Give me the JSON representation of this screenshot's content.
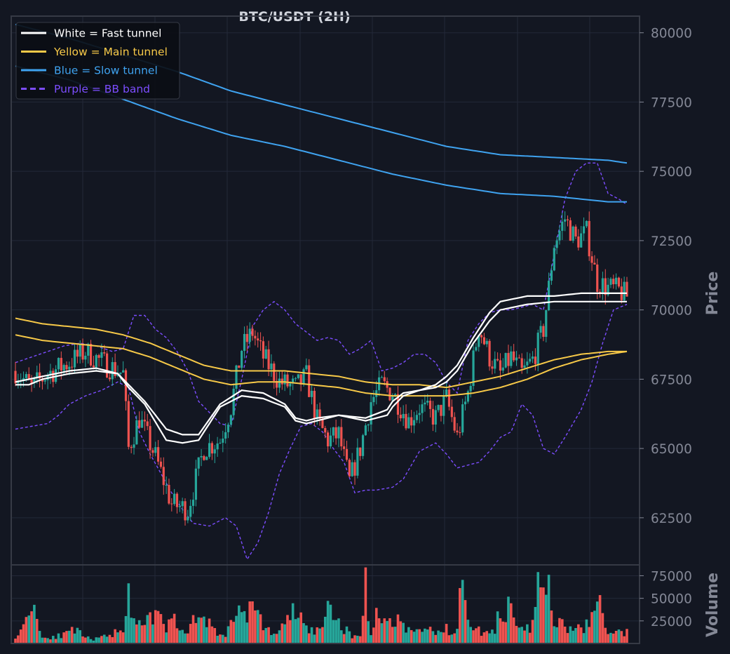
{
  "chart_data": {
    "type": "candlestick",
    "title": "BTC/USDT (2H)",
    "price_axis": {
      "label": "Price",
      "ylim": [
        60800,
        80600
      ],
      "ticks": [
        62500,
        65000,
        67500,
        70000,
        72500,
        75000,
        77500,
        80000
      ]
    },
    "volume_axis": {
      "label": "Volume",
      "ylim": [
        0,
        87000
      ],
      "ticks": [
        25000,
        50000,
        75000
      ]
    },
    "grid": true,
    "legend": {
      "placement": "top-left",
      "entries": [
        {
          "label": "White = Fast tunnel",
          "color": "#ffffff",
          "style": "solid"
        },
        {
          "label": "Yellow = Main tunnel",
          "color": "#f7c948",
          "style": "solid"
        },
        {
          "label": "Blue = Slow tunnel",
          "color": "#3fa3f0",
          "style": "solid"
        },
        {
          "label": "Purple = BB band",
          "color": "#7c4dff",
          "style": "dashed"
        }
      ]
    },
    "colors": {
      "background": "#131722",
      "up": "#26a69a",
      "down": "#ef5350",
      "grid": "#232838",
      "frame": "#363a45"
    },
    "candles_anchor_close": [
      [
        0,
        67800
      ],
      [
        6,
        67200
      ],
      [
        12,
        67700
      ],
      [
        20,
        68100
      ],
      [
        26,
        68500
      ],
      [
        34,
        68000
      ],
      [
        40,
        67700
      ],
      [
        42,
        65000
      ],
      [
        46,
        66100
      ],
      [
        52,
        64700
      ],
      [
        58,
        63000
      ],
      [
        64,
        62800
      ],
      [
        70,
        65000
      ],
      [
        76,
        65300
      ],
      [
        80,
        66500
      ],
      [
        84,
        68600
      ],
      [
        88,
        69200
      ],
      [
        92,
        68300
      ],
      [
        98,
        67400
      ],
      [
        104,
        67200
      ],
      [
        108,
        67600
      ],
      [
        112,
        66000
      ],
      [
        116,
        65300
      ],
      [
        120,
        65500
      ],
      [
        124,
        63800
      ],
      [
        128,
        65000
      ],
      [
        132,
        66700
      ],
      [
        136,
        67300
      ],
      [
        140,
        67000
      ],
      [
        146,
        66000
      ],
      [
        150,
        66500
      ],
      [
        156,
        66100
      ],
      [
        160,
        66800
      ],
      [
        164,
        65400
      ],
      [
        168,
        67000
      ],
      [
        172,
        69400
      ],
      [
        176,
        68300
      ],
      [
        180,
        67700
      ],
      [
        184,
        68300
      ],
      [
        188,
        67700
      ],
      [
        192,
        68200
      ],
      [
        196,
        69300
      ],
      [
        198,
        70800
      ],
      [
        200,
        72400
      ],
      [
        204,
        73300
      ],
      [
        208,
        72500
      ],
      [
        212,
        72800
      ],
      [
        216,
        71000
      ],
      [
        220,
        70800
      ],
      [
        224,
        70700
      ],
      [
        227,
        70500
      ]
    ],
    "fast_tunnel_upper": [
      [
        0,
        67400
      ],
      [
        5,
        67500
      ],
      [
        10,
        67600
      ],
      [
        20,
        67800
      ],
      [
        30,
        67900
      ],
      [
        38,
        67700
      ],
      [
        42,
        67300
      ],
      [
        48,
        66700
      ],
      [
        56,
        65700
      ],
      [
        62,
        65500
      ],
      [
        68,
        65500
      ],
      [
        76,
        66600
      ],
      [
        84,
        67100
      ],
      [
        92,
        67000
      ],
      [
        100,
        66600
      ],
      [
        104,
        66100
      ],
      [
        108,
        66000
      ],
      [
        112,
        66100
      ],
      [
        120,
        66200
      ],
      [
        130,
        66100
      ],
      [
        138,
        66400
      ],
      [
        140,
        66700
      ],
      [
        144,
        67000
      ],
      [
        150,
        67100
      ],
      [
        156,
        67300
      ],
      [
        160,
        67600
      ],
      [
        164,
        68000
      ],
      [
        170,
        69000
      ],
      [
        176,
        69900
      ],
      [
        180,
        70300
      ],
      [
        190,
        70500
      ],
      [
        200,
        70500
      ],
      [
        210,
        70600
      ],
      [
        220,
        70600
      ],
      [
        227,
        70600
      ]
    ],
    "fast_tunnel_lower": [
      [
        0,
        67300
      ],
      [
        5,
        67300
      ],
      [
        10,
        67500
      ],
      [
        20,
        67700
      ],
      [
        30,
        67800
      ],
      [
        38,
        67700
      ],
      [
        42,
        67200
      ],
      [
        48,
        66600
      ],
      [
        56,
        65300
      ],
      [
        62,
        65200
      ],
      [
        68,
        65300
      ],
      [
        76,
        66500
      ],
      [
        84,
        66900
      ],
      [
        92,
        66800
      ],
      [
        100,
        66500
      ],
      [
        104,
        66000
      ],
      [
        108,
        65900
      ],
      [
        112,
        66000
      ],
      [
        120,
        66200
      ],
      [
        130,
        66000
      ],
      [
        138,
        66200
      ],
      [
        140,
        66500
      ],
      [
        144,
        66900
      ],
      [
        150,
        67100
      ],
      [
        156,
        67200
      ],
      [
        160,
        67400
      ],
      [
        164,
        67800
      ],
      [
        170,
        68800
      ],
      [
        176,
        69600
      ],
      [
        180,
        70000
      ],
      [
        190,
        70200
      ],
      [
        200,
        70300
      ],
      [
        210,
        70300
      ],
      [
        220,
        70300
      ],
      [
        227,
        70300
      ]
    ],
    "main_tunnel_upper": [
      [
        0,
        69700
      ],
      [
        10,
        69500
      ],
      [
        20,
        69400
      ],
      [
        30,
        69300
      ],
      [
        40,
        69100
      ],
      [
        50,
        68800
      ],
      [
        60,
        68400
      ],
      [
        70,
        68000
      ],
      [
        80,
        67800
      ],
      [
        90,
        67800
      ],
      [
        100,
        67800
      ],
      [
        110,
        67700
      ],
      [
        120,
        67600
      ],
      [
        130,
        67400
      ],
      [
        140,
        67300
      ],
      [
        150,
        67300
      ],
      [
        160,
        67200
      ],
      [
        170,
        67400
      ],
      [
        180,
        67600
      ],
      [
        190,
        67900
      ],
      [
        200,
        68200
      ],
      [
        210,
        68400
      ],
      [
        220,
        68500
      ],
      [
        227,
        68500
      ]
    ],
    "main_tunnel_lower": [
      [
        0,
        69100
      ],
      [
        10,
        68900
      ],
      [
        20,
        68800
      ],
      [
        30,
        68700
      ],
      [
        40,
        68600
      ],
      [
        50,
        68300
      ],
      [
        60,
        67900
      ],
      [
        70,
        67500
      ],
      [
        80,
        67300
      ],
      [
        90,
        67400
      ],
      [
        100,
        67400
      ],
      [
        110,
        67300
      ],
      [
        120,
        67200
      ],
      [
        130,
        67000
      ],
      [
        140,
        66900
      ],
      [
        150,
        66900
      ],
      [
        160,
        66900
      ],
      [
        170,
        67000
      ],
      [
        180,
        67200
      ],
      [
        190,
        67500
      ],
      [
        200,
        67900
      ],
      [
        210,
        68200
      ],
      [
        220,
        68400
      ],
      [
        227,
        68500
      ]
    ],
    "slow_tunnel_upper": [
      [
        0,
        80300
      ],
      [
        20,
        79800
      ],
      [
        40,
        79200
      ],
      [
        60,
        78600
      ],
      [
        80,
        77900
      ],
      [
        100,
        77400
      ],
      [
        120,
        76900
      ],
      [
        140,
        76400
      ],
      [
        160,
        75900
      ],
      [
        180,
        75600
      ],
      [
        200,
        75500
      ],
      [
        220,
        75400
      ],
      [
        227,
        75300
      ]
    ],
    "slow_tunnel_lower": [
      [
        0,
        78800
      ],
      [
        20,
        78300
      ],
      [
        40,
        77600
      ],
      [
        60,
        76900
      ],
      [
        80,
        76300
      ],
      [
        100,
        75900
      ],
      [
        120,
        75400
      ],
      [
        140,
        74900
      ],
      [
        160,
        74500
      ],
      [
        180,
        74200
      ],
      [
        200,
        74100
      ],
      [
        220,
        73900
      ],
      [
        227,
        73900
      ]
    ],
    "bb_upper": [
      [
        0,
        68100
      ],
      [
        6,
        68300
      ],
      [
        12,
        68500
      ],
      [
        18,
        68700
      ],
      [
        24,
        68800
      ],
      [
        30,
        68700
      ],
      [
        36,
        68500
      ],
      [
        40,
        68600
      ],
      [
        44,
        69800
      ],
      [
        48,
        69800
      ],
      [
        52,
        69300
      ],
      [
        56,
        69000
      ],
      [
        60,
        68500
      ],
      [
        64,
        67800
      ],
      [
        68,
        66700
      ],
      [
        72,
        66300
      ],
      [
        76,
        65900
      ],
      [
        80,
        65800
      ],
      [
        84,
        67500
      ],
      [
        88,
        69400
      ],
      [
        92,
        70000
      ],
      [
        96,
        70300
      ],
      [
        100,
        70000
      ],
      [
        104,
        69500
      ],
      [
        108,
        69200
      ],
      [
        112,
        68900
      ],
      [
        116,
        69000
      ],
      [
        120,
        68900
      ],
      [
        124,
        68400
      ],
      [
        128,
        68600
      ],
      [
        132,
        68900
      ],
      [
        136,
        67800
      ],
      [
        140,
        67900
      ],
      [
        144,
        68100
      ],
      [
        148,
        68400
      ],
      [
        152,
        68400
      ],
      [
        156,
        68100
      ],
      [
        160,
        67400
      ],
      [
        164,
        67000
      ],
      [
        168,
        68900
      ],
      [
        172,
        69500
      ],
      [
        176,
        69900
      ],
      [
        180,
        70000
      ],
      [
        184,
        70000
      ],
      [
        188,
        70100
      ],
      [
        192,
        70200
      ],
      [
        196,
        70000
      ],
      [
        200,
        72000
      ],
      [
        204,
        74000
      ],
      [
        208,
        75000
      ],
      [
        212,
        75300
      ],
      [
        216,
        75300
      ],
      [
        220,
        74200
      ],
      [
        224,
        74000
      ],
      [
        227,
        73800
      ]
    ],
    "bb_lower": [
      [
        0,
        65700
      ],
      [
        6,
        65800
      ],
      [
        12,
        65900
      ],
      [
        16,
        66200
      ],
      [
        20,
        66600
      ],
      [
        26,
        66900
      ],
      [
        32,
        67100
      ],
      [
        38,
        67400
      ],
      [
        42,
        67200
      ],
      [
        46,
        65600
      ],
      [
        50,
        64800
      ],
      [
        54,
        64100
      ],
      [
        58,
        63400
      ],
      [
        62,
        62800
      ],
      [
        66,
        62300
      ],
      [
        72,
        62200
      ],
      [
        78,
        62500
      ],
      [
        82,
        62200
      ],
      [
        86,
        61000
      ],
      [
        90,
        61600
      ],
      [
        94,
        62700
      ],
      [
        98,
        64100
      ],
      [
        102,
        65000
      ],
      [
        106,
        65800
      ],
      [
        110,
        65900
      ],
      [
        114,
        65600
      ],
      [
        118,
        65000
      ],
      [
        122,
        64500
      ],
      [
        126,
        63400
      ],
      [
        130,
        63500
      ],
      [
        134,
        63500
      ],
      [
        140,
        63600
      ],
      [
        144,
        63900
      ],
      [
        150,
        64900
      ],
      [
        156,
        65200
      ],
      [
        160,
        64800
      ],
      [
        164,
        64300
      ],
      [
        168,
        64400
      ],
      [
        172,
        64500
      ],
      [
        176,
        64900
      ],
      [
        180,
        65400
      ],
      [
        184,
        65600
      ],
      [
        188,
        66600
      ],
      [
        192,
        66200
      ],
      [
        196,
        65000
      ],
      [
        200,
        64800
      ],
      [
        204,
        65400
      ],
      [
        210,
        66400
      ],
      [
        214,
        67400
      ],
      [
        218,
        68800
      ],
      [
        222,
        70000
      ],
      [
        227,
        70200
      ]
    ],
    "volume_anchor": [
      [
        0,
        9000
      ],
      [
        2,
        12000
      ],
      [
        4,
        30000
      ],
      [
        6,
        50000
      ],
      [
        8,
        30000
      ],
      [
        10,
        6000
      ],
      [
        14,
        8000
      ],
      [
        18,
        9000
      ],
      [
        22,
        15000
      ],
      [
        26,
        6000
      ],
      [
        30,
        5000
      ],
      [
        34,
        8000
      ],
      [
        38,
        14000
      ],
      [
        40,
        18000
      ],
      [
        42,
        64000
      ],
      [
        44,
        20000
      ],
      [
        48,
        20000
      ],
      [
        52,
        32000
      ],
      [
        56,
        18000
      ],
      [
        60,
        28000
      ],
      [
        64,
        8000
      ],
      [
        66,
        28000
      ],
      [
        70,
        30000
      ],
      [
        74,
        14000
      ],
      [
        78,
        8000
      ],
      [
        82,
        36000
      ],
      [
        86,
        38000
      ],
      [
        88,
        38000
      ],
      [
        92,
        20000
      ],
      [
        96,
        10000
      ],
      [
        100,
        20000
      ],
      [
        104,
        38000
      ],
      [
        108,
        16000
      ],
      [
        112,
        14000
      ],
      [
        116,
        34000
      ],
      [
        120,
        24000
      ],
      [
        124,
        10000
      ],
      [
        128,
        8000
      ],
      [
        130,
        68000
      ],
      [
        132,
        10000
      ],
      [
        134,
        30000
      ],
      [
        138,
        24000
      ],
      [
        142,
        28000
      ],
      [
        146,
        14000
      ],
      [
        150,
        14000
      ],
      [
        154,
        16000
      ],
      [
        158,
        12000
      ],
      [
        160,
        16000
      ],
      [
        162,
        10000
      ],
      [
        164,
        14000
      ],
      [
        166,
        82000
      ],
      [
        168,
        40000
      ],
      [
        170,
        16000
      ],
      [
        174,
        12000
      ],
      [
        178,
        12000
      ],
      [
        180,
        40000
      ],
      [
        184,
        38000
      ],
      [
        186,
        14000
      ],
      [
        190,
        16000
      ],
      [
        192,
        20000
      ],
      [
        194,
        64000
      ],
      [
        196,
        50000
      ],
      [
        198,
        64000
      ],
      [
        200,
        24000
      ],
      [
        204,
        18000
      ],
      [
        208,
        14000
      ],
      [
        212,
        20000
      ],
      [
        216,
        42000
      ],
      [
        218,
        36000
      ],
      [
        220,
        12000
      ],
      [
        224,
        12000
      ],
      [
        227,
        12000
      ]
    ],
    "num_candles": 228
  }
}
